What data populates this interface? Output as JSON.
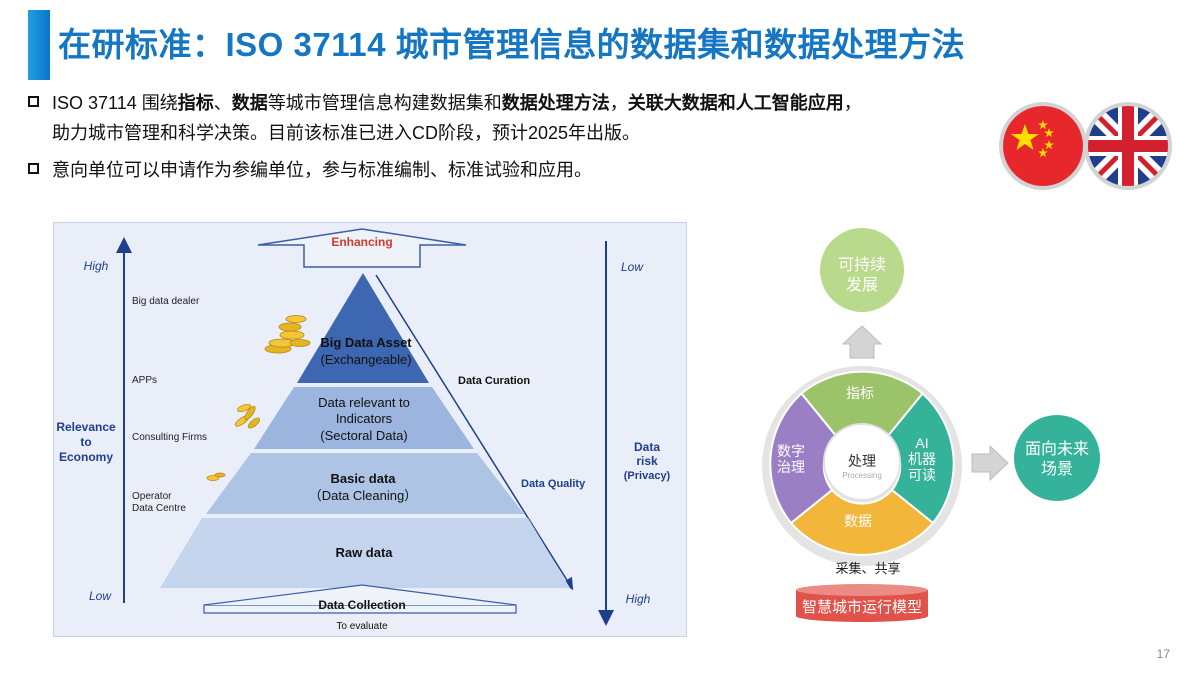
{
  "title": "在研标准：ISO 37114 城市管理信息的数据集和数据处理方法",
  "bullets": [
    {
      "line1_a": "ISO  37114  围绕",
      "line1_b": "指标",
      "line1_c": "、",
      "line1_d": "数据",
      "line1_e": "等城市管理信息构建数据集和",
      "line1_f": "数据处理方法",
      "line1_g": "，",
      "line1_h": "关联大数据和人工智能应用",
      "line1_i": "，",
      "line2": "助力城市管理和科学决策。目前该标准已进入CD阶段，预计2025年出版。"
    },
    {
      "line1": "意向单位可以申请作为参编单位，参与标准编制、标准试验和应用。"
    }
  ],
  "flags": {
    "china": "china-flag",
    "uk": "uk-flag"
  },
  "pyramid": {
    "enhancing": "Enhancing",
    "data_collection": "Data Collection",
    "to_evaluate": "To evaluate",
    "left_axis": {
      "high": "High",
      "low": "Low",
      "label_1": "Relevance",
      "label_2": "to",
      "label_3": "Economy"
    },
    "right_axis": {
      "low": "Low",
      "high": "High",
      "label_1": "Data",
      "label_2": "risk",
      "label_3": "(Privacy)"
    },
    "left_labels": {
      "big_data_dealer": "Big data dealer",
      "apps": "APPs",
      "consulting": "Consulting Firms",
      "operator_1": "Operator",
      "operator_2": "Data Centre"
    },
    "side_labels": {
      "curation": "Data Curation",
      "quality": "Data Quality"
    },
    "levels": {
      "top_1": "Big Data Asset",
      "top_2": "(Exchangeable)",
      "second_1": "Data relevant to",
      "second_2": "Indicators",
      "second_3": "(Sectoral Data)",
      "third_1": "Basic data",
      "third_2": "（Data Cleaning）",
      "bottom": "Raw data"
    }
  },
  "cycle": {
    "sustainable_1": "可持续",
    "sustainable_2": "发展",
    "future_1": "面向未来",
    "future_2": "场景",
    "indicators": "指标",
    "ai_1": "AI",
    "ai_2": "机器",
    "ai_3": "可读",
    "data": "数据",
    "digital_1": "数字",
    "digital_2": "治理",
    "center": "处理",
    "center_sub": "Processing",
    "collect_share": "采集、共享",
    "model": "智慧城市运行模型"
  },
  "page_number": "17",
  "colors": {
    "title": "#1577c4",
    "indicators": "#9bc46a",
    "ai": "#35b39a",
    "data": "#f2b63a",
    "digital": "#9b7fc4",
    "model": "#e0524a",
    "pyramid_dark": "#5a7fc2"
  }
}
